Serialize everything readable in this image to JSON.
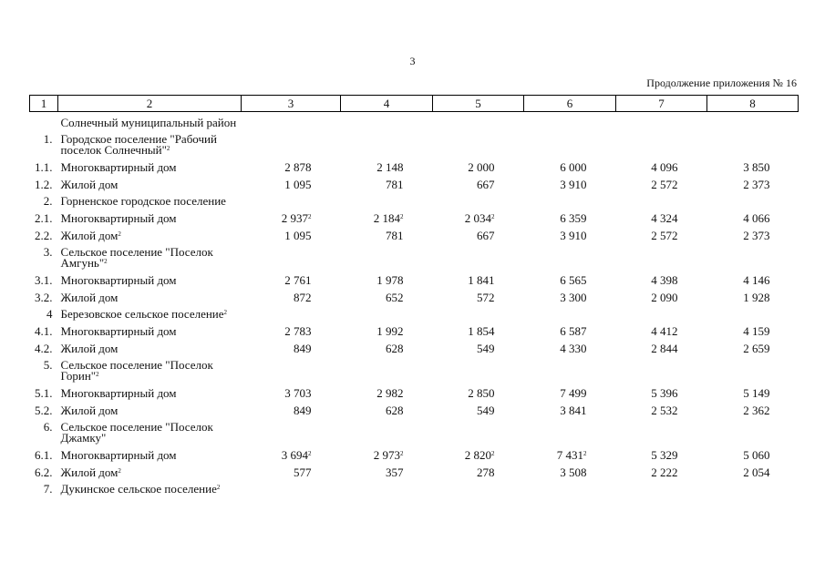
{
  "page_number": "3",
  "continuation": "Продолжение приложения № 16",
  "headers": [
    "1",
    "2",
    "3",
    "4",
    "5",
    "6",
    "7",
    "8"
  ],
  "rows": [
    {
      "type": "sec",
      "num": "",
      "label": "Солнечный муниципальный район",
      "sup": "",
      "vals": []
    },
    {
      "type": "sec",
      "num": "1.",
      "label": "Городское поселение \"Рабочий поселок Солнечный\"",
      "sup": "2",
      "vals": []
    },
    {
      "type": "item",
      "num": "1.1.",
      "label": "Многоквартирный дом",
      "sup": "",
      "vals": [
        [
          "2 878",
          ""
        ],
        [
          "2 148",
          ""
        ],
        [
          "2 000",
          ""
        ],
        [
          "6 000",
          ""
        ],
        [
          "4 096",
          ""
        ],
        [
          "3 850",
          ""
        ]
      ]
    },
    {
      "type": "item",
      "num": "1.2.",
      "label": "Жилой дом",
      "sup": "",
      "vals": [
        [
          "1 095",
          ""
        ],
        [
          "781",
          ""
        ],
        [
          "667",
          ""
        ],
        [
          "3 910",
          ""
        ],
        [
          "2 572",
          ""
        ],
        [
          "2 373",
          ""
        ]
      ]
    },
    {
      "type": "sec",
      "num": "2.",
      "label": "Горненское городское поселение",
      "sup": "",
      "vals": []
    },
    {
      "type": "item",
      "num": "2.1.",
      "label": "Многоквартирный дом",
      "sup": "",
      "vals": [
        [
          "2 937",
          "2"
        ],
        [
          "2 184",
          "2"
        ],
        [
          "2 034",
          "2"
        ],
        [
          "6 359",
          ""
        ],
        [
          "4 324",
          ""
        ],
        [
          "4 066",
          ""
        ]
      ]
    },
    {
      "type": "item",
      "num": "2.2.",
      "label": "Жилой дом",
      "sup": "2",
      "vals": [
        [
          "1 095",
          ""
        ],
        [
          "781",
          ""
        ],
        [
          "667",
          ""
        ],
        [
          "3 910",
          ""
        ],
        [
          "2 572",
          ""
        ],
        [
          "2 373",
          ""
        ]
      ]
    },
    {
      "type": "sec",
      "num": "3.",
      "label": "Сельское поселение \"Поселок Амгунь\"",
      "sup": "2",
      "vals": []
    },
    {
      "type": "item",
      "num": "3.1.",
      "label": "Многоквартирный дом",
      "sup": "",
      "vals": [
        [
          "2 761",
          ""
        ],
        [
          "1 978",
          ""
        ],
        [
          "1 841",
          ""
        ],
        [
          "6 565",
          ""
        ],
        [
          "4 398",
          ""
        ],
        [
          "4 146",
          ""
        ]
      ]
    },
    {
      "type": "item",
      "num": "3.2.",
      "label": "Жилой дом",
      "sup": "",
      "vals": [
        [
          "872",
          ""
        ],
        [
          "652",
          ""
        ],
        [
          "572",
          ""
        ],
        [
          "3 300",
          ""
        ],
        [
          "2 090",
          ""
        ],
        [
          "1 928",
          ""
        ]
      ]
    },
    {
      "type": "sec",
      "num": "4",
      "label": "Березовское сельское поселение",
      "sup": "2",
      "vals": []
    },
    {
      "type": "item",
      "num": "4.1.",
      "label": "Многоквартирный дом",
      "sup": "",
      "vals": [
        [
          "2 783",
          ""
        ],
        [
          "1 992",
          ""
        ],
        [
          "1 854",
          ""
        ],
        [
          "6 587",
          ""
        ],
        [
          "4 412",
          ""
        ],
        [
          "4 159",
          ""
        ]
      ]
    },
    {
      "type": "item",
      "num": "4.2.",
      "label": "Жилой дом",
      "sup": "",
      "vals": [
        [
          "849",
          ""
        ],
        [
          "628",
          ""
        ],
        [
          "549",
          ""
        ],
        [
          "4 330",
          ""
        ],
        [
          "2 844",
          ""
        ],
        [
          "2 659",
          ""
        ]
      ]
    },
    {
      "type": "sec",
      "num": "5.",
      "label": "Сельское поселение \"Поселок Горин\"",
      "sup": "2",
      "vals": []
    },
    {
      "type": "item",
      "num": "5.1.",
      "label": "Многоквартирный дом",
      "sup": "",
      "vals": [
        [
          "3 703",
          ""
        ],
        [
          "2 982",
          ""
        ],
        [
          "2 850",
          ""
        ],
        [
          "7 499",
          ""
        ],
        [
          "5 396",
          ""
        ],
        [
          "5 149",
          ""
        ]
      ]
    },
    {
      "type": "item",
      "num": "5.2.",
      "label": "Жилой дом",
      "sup": "",
      "vals": [
        [
          "849",
          ""
        ],
        [
          "628",
          ""
        ],
        [
          "549",
          ""
        ],
        [
          "3 841",
          ""
        ],
        [
          "2 532",
          ""
        ],
        [
          "2 362",
          ""
        ]
      ]
    },
    {
      "type": "sec",
      "num": "6.",
      "label": "Сельское поселение \"Поселок Джамку\"",
      "sup": "",
      "vals": []
    },
    {
      "type": "item",
      "num": "6.1.",
      "label": "Многоквартирный дом",
      "sup": "",
      "vals": [
        [
          "3 694",
          "2"
        ],
        [
          "2 973",
          "2"
        ],
        [
          "2 820",
          "2"
        ],
        [
          "7 431",
          "2"
        ],
        [
          "5 329",
          ""
        ],
        [
          "5 060",
          ""
        ]
      ]
    },
    {
      "type": "item",
      "num": "6.2.",
      "label": "Жилой дом",
      "sup": "2",
      "vals": [
        [
          "577",
          ""
        ],
        [
          "357",
          ""
        ],
        [
          "278",
          ""
        ],
        [
          "3 508",
          ""
        ],
        [
          "2 222",
          ""
        ],
        [
          "2 054",
          ""
        ]
      ]
    },
    {
      "type": "sec",
      "num": "7.",
      "label": "Дукинское сельское поселение",
      "sup": "2",
      "vals": []
    }
  ]
}
